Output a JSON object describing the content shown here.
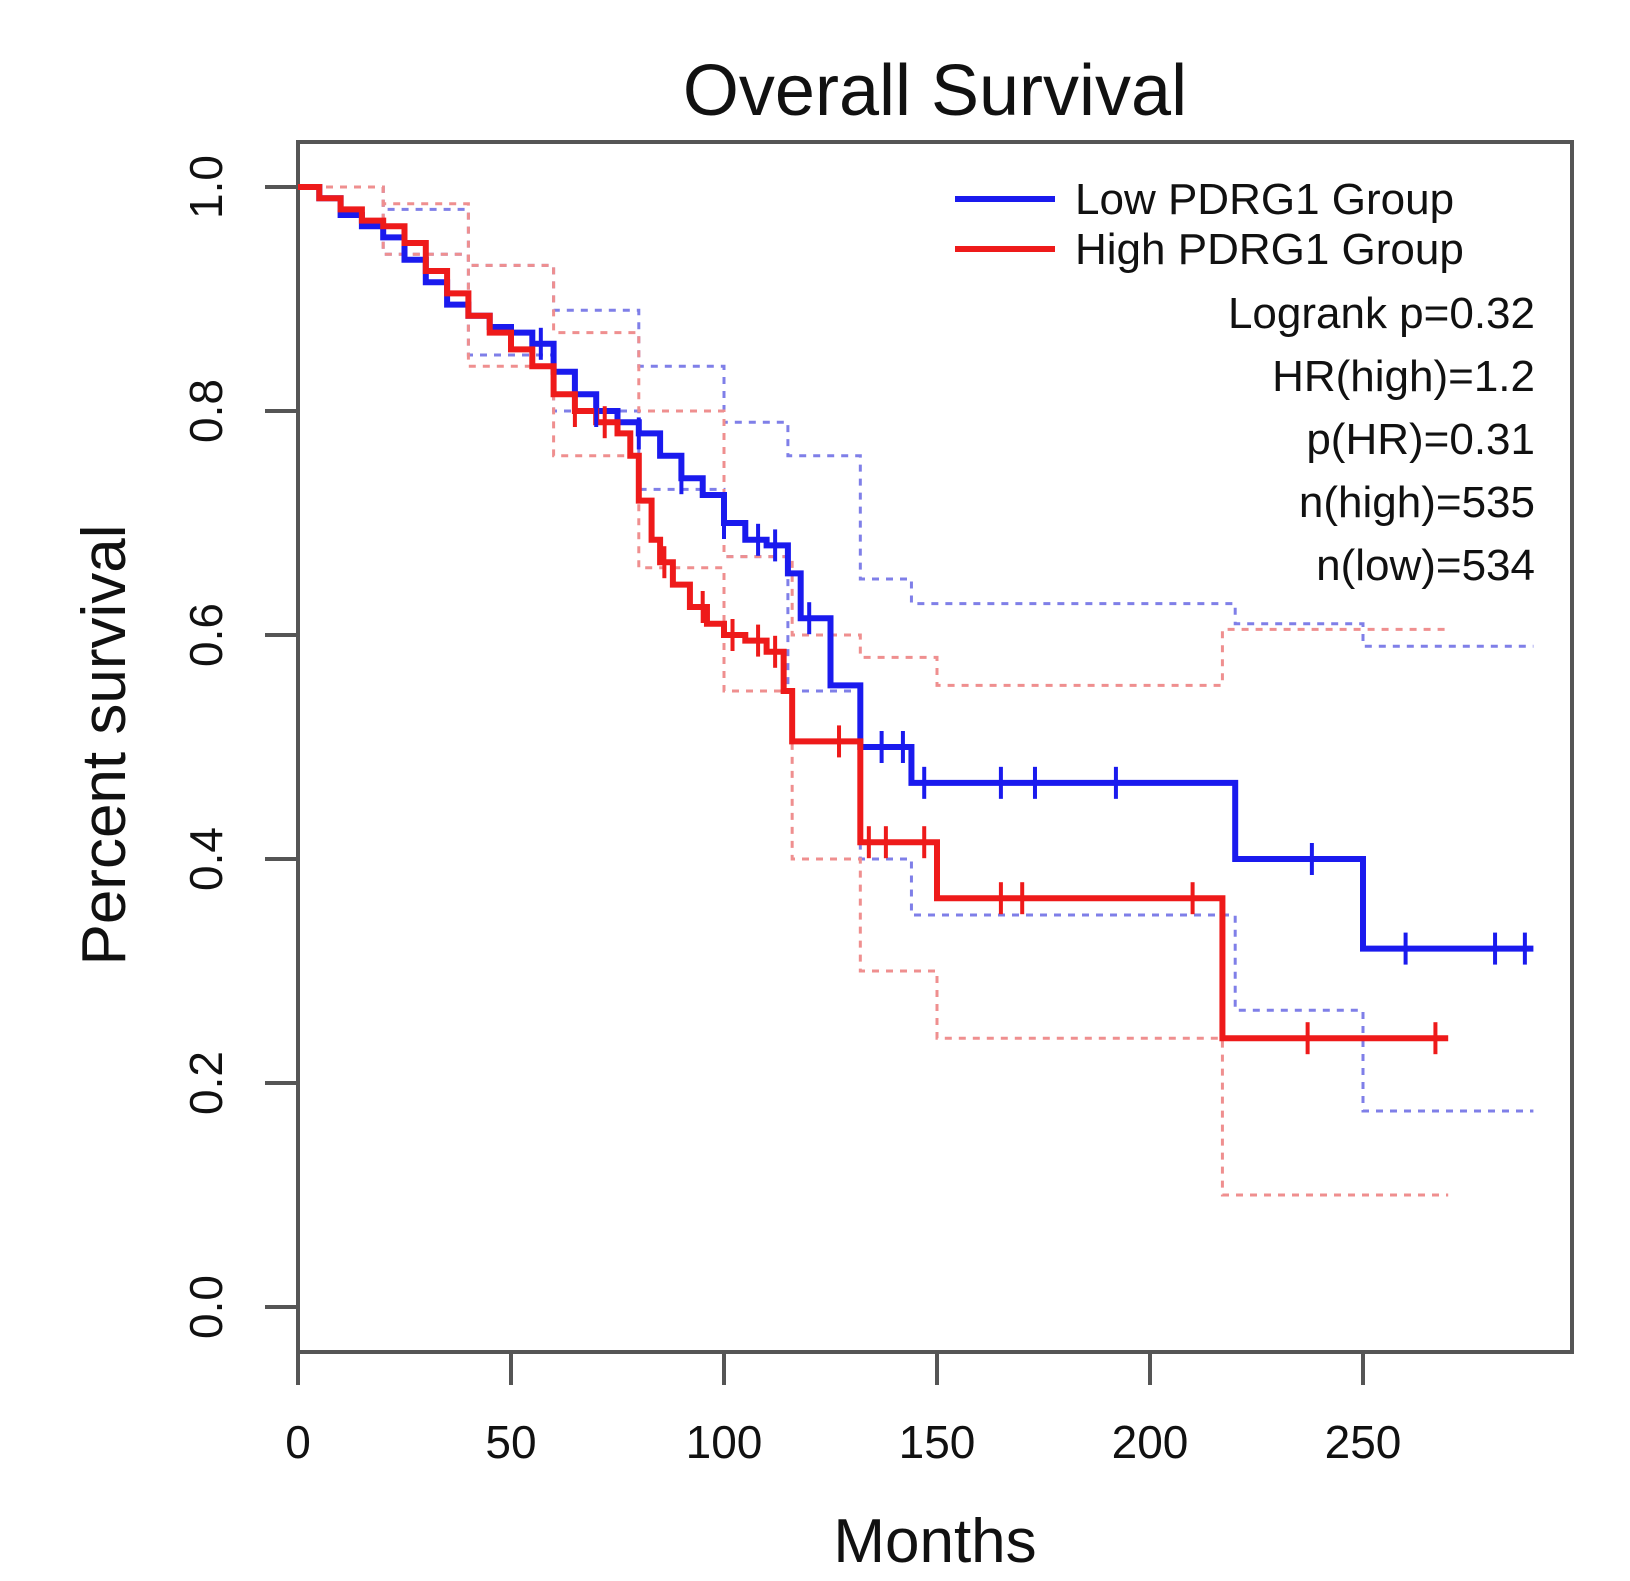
{
  "chart_data": {
    "type": "line",
    "subtype": "kaplan-meier",
    "title": "Overall Survival",
    "xlabel": "Months",
    "ylabel": "Percent survival",
    "xlim": [
      0,
      300
    ],
    "ylim": [
      0,
      1.0
    ],
    "xticks": [
      0,
      50,
      100,
      150,
      200,
      250
    ],
    "yticks": [
      0.0,
      0.2,
      0.4,
      0.6,
      0.8,
      1.0
    ],
    "xtick_labels": [
      "0",
      "50",
      "100",
      "150",
      "200",
      "250"
    ],
    "ytick_labels": [
      "0.0",
      "0.2",
      "0.4",
      "0.6",
      "0.8",
      "1.0"
    ],
    "grid": false,
    "legend_position": "top-right",
    "series": [
      {
        "name": "Low PDRG1 Group",
        "color": "#1a1aee",
        "x": [
          0,
          5,
          10,
          15,
          20,
          25,
          30,
          35,
          40,
          45,
          50,
          55,
          60,
          65,
          70,
          75,
          80,
          85,
          90,
          95,
          100,
          105,
          110,
          115,
          118,
          125,
          132,
          144,
          220,
          250,
          290
        ],
        "y": [
          1.0,
          0.99,
          0.975,
          0.965,
          0.955,
          0.935,
          0.915,
          0.895,
          0.885,
          0.875,
          0.87,
          0.86,
          0.835,
          0.815,
          0.8,
          0.79,
          0.78,
          0.76,
          0.74,
          0.725,
          0.7,
          0.685,
          0.68,
          0.655,
          0.615,
          0.555,
          0.5,
          0.468,
          0.4,
          0.32,
          0.32
        ],
        "censor_x": [
          57,
          70,
          80,
          90,
          100,
          108,
          112,
          120,
          137,
          142,
          147,
          165,
          173,
          192,
          238,
          260,
          281,
          288
        ],
        "ci_upper_x": [
          0,
          20,
          40,
          60,
          80,
          100,
          115,
          132,
          144,
          220,
          250,
          290
        ],
        "ci_upper_y": [
          1.0,
          0.98,
          0.93,
          0.89,
          0.84,
          0.79,
          0.76,
          0.65,
          0.628,
          0.61,
          0.59,
          0.59
        ],
        "ci_lower_x": [
          0,
          20,
          40,
          60,
          80,
          100,
          115,
          132,
          144,
          220,
          250,
          290
        ],
        "ci_lower_y": [
          1.0,
          0.94,
          0.85,
          0.8,
          0.73,
          0.67,
          0.55,
          0.4,
          0.35,
          0.265,
          0.175,
          0.175
        ]
      },
      {
        "name": "High PDRG1 Group",
        "color": "#ee1a1a",
        "x": [
          0,
          5,
          10,
          15,
          20,
          25,
          30,
          35,
          40,
          45,
          50,
          55,
          60,
          65,
          70,
          75,
          78,
          80,
          83,
          85,
          88,
          92,
          96,
          100,
          105,
          110,
          114,
          116,
          132,
          150,
          217,
          270
        ],
        "y": [
          1.0,
          0.99,
          0.98,
          0.97,
          0.965,
          0.95,
          0.925,
          0.905,
          0.885,
          0.87,
          0.855,
          0.84,
          0.815,
          0.8,
          0.79,
          0.78,
          0.76,
          0.72,
          0.685,
          0.665,
          0.645,
          0.625,
          0.61,
          0.6,
          0.595,
          0.585,
          0.55,
          0.505,
          0.415,
          0.365,
          0.24,
          0.24
        ],
        "censor_x": [
          65,
          72,
          86,
          95,
          102,
          108,
          112,
          127,
          134,
          138,
          147,
          165,
          170,
          210,
          237,
          267
        ],
        "ci_upper_x": [
          0,
          20,
          40,
          60,
          80,
          100,
          116,
          132,
          150,
          217,
          270
        ],
        "ci_upper_y": [
          1.0,
          0.985,
          0.93,
          0.87,
          0.8,
          0.67,
          0.6,
          0.58,
          0.555,
          0.605,
          0.605
        ],
        "ci_lower_x": [
          0,
          20,
          40,
          60,
          80,
          100,
          116,
          132,
          150,
          217,
          270
        ],
        "ci_lower_y": [
          1.0,
          0.94,
          0.84,
          0.76,
          0.66,
          0.55,
          0.4,
          0.3,
          0.24,
          0.1,
          0.1
        ]
      }
    ],
    "annotations": [
      "Logrank p=0.32",
      "HR(high)=1.2",
      "p(HR)=0.31",
      "n(high)=535",
      "n(low)=534"
    ]
  }
}
